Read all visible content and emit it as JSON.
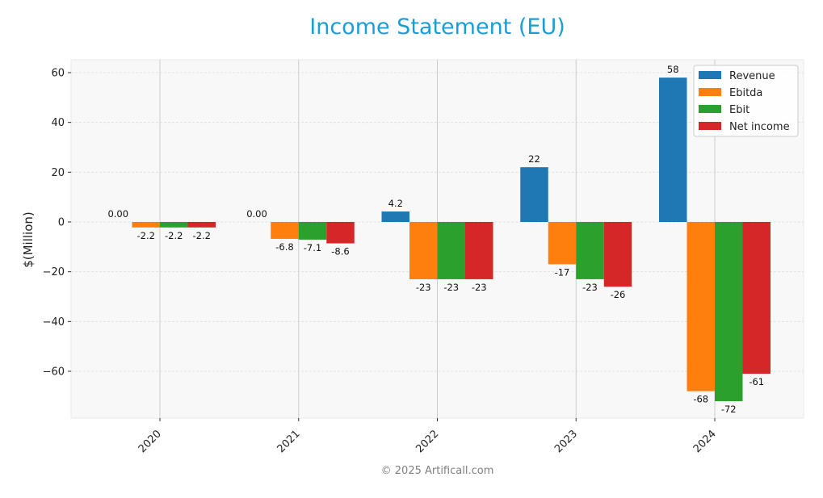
{
  "title": "Income Statement (EU)",
  "footer": "© 2025 Artificall.com",
  "chart_data": {
    "type": "bar",
    "title": "Income Statement (EU)",
    "xlabel": "",
    "ylabel": "$(Million)",
    "ylim": [
      -79,
      65
    ],
    "yticks": [
      60,
      40,
      20,
      0,
      -20,
      -40,
      -60
    ],
    "ytick_labels": [
      "60",
      "40",
      "20",
      "0",
      "−20",
      "−40",
      "−60"
    ],
    "grid": true,
    "legend_position": "upper right",
    "categories": [
      "2020",
      "2021",
      "2022",
      "2023",
      "2024"
    ],
    "series": [
      {
        "name": "Revenue",
        "color": "#1f77b4",
        "values": [
          0.0,
          0.0,
          4.2,
          22,
          58
        ],
        "labels": [
          "0.00",
          "0.00",
          "4.2",
          "22",
          "58"
        ]
      },
      {
        "name": "Ebitda",
        "color": "#ff7f0e",
        "values": [
          -2.2,
          -6.8,
          -23,
          -17,
          -68
        ],
        "labels": [
          "-2.2",
          "-6.8",
          "-23",
          "-17",
          "-68"
        ]
      },
      {
        "name": "Ebit",
        "color": "#2ca02c",
        "values": [
          -2.2,
          -7.1,
          -23,
          -23,
          -72
        ],
        "labels": [
          "-2.2",
          "-7.1",
          "-23",
          "-23",
          "-72"
        ]
      },
      {
        "name": "Net income",
        "color": "#d62728",
        "values": [
          -2.2,
          -8.6,
          -23,
          -26,
          -61
        ],
        "labels": [
          "-2.2",
          "-8.6",
          "-23",
          "-26",
          "-61"
        ]
      }
    ]
  }
}
